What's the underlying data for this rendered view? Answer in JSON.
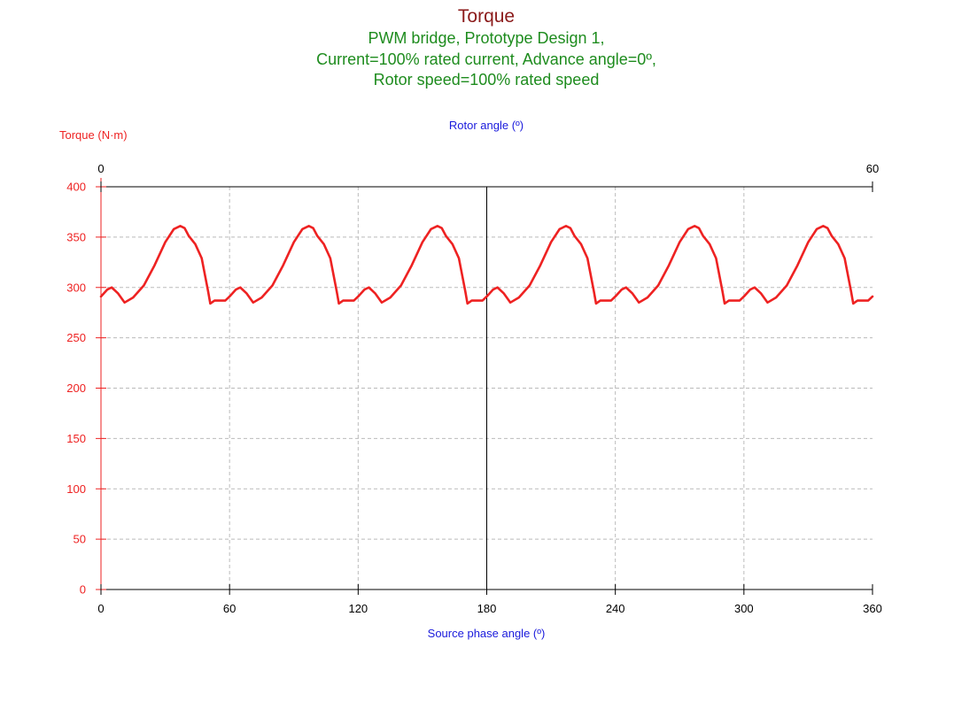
{
  "chart_data": {
    "type": "line",
    "title": "Torque",
    "subtitle_lines": [
      "PWM bridge, Prototype Design 1,",
      "Current=100% rated current, Advance angle=0º,",
      "Rotor speed=100% rated speed"
    ],
    "ylabel": "Torque (N·m)",
    "xlabel": "Source phase angle (º)",
    "x2label": "Rotor angle (º)",
    "xlim": [
      0,
      360
    ],
    "ylim": [
      0,
      400
    ],
    "x2lim": [
      0,
      60
    ],
    "xticks": [
      0,
      60,
      120,
      180,
      240,
      300,
      360
    ],
    "yticks": [
      0,
      50,
      100,
      150,
      200,
      250,
      300,
      350,
      400
    ],
    "x2ticks": [
      0,
      60
    ],
    "grid": true,
    "colors": {
      "title": "#8b1a1a",
      "subtitle": "#1e8c1e",
      "axis_label": "#1a1adc",
      "y_axis": "#ee2222",
      "series": "#ee2222",
      "grid": "#bbbbbb",
      "frame": "#000000"
    },
    "series": [
      {
        "period_deg": 60,
        "x": [
          0,
          3,
          5,
          8,
          11,
          15,
          20,
          25,
          30,
          34,
          37,
          39,
          41,
          44,
          47,
          50,
          51,
          53,
          55,
          58,
          60
        ],
        "values": [
          291,
          298,
          300,
          294,
          285,
          290,
          302,
          322,
          345,
          358,
          361,
          359,
          351,
          343,
          329,
          296,
          284,
          287,
          287,
          287,
          291
        ]
      }
    ]
  }
}
